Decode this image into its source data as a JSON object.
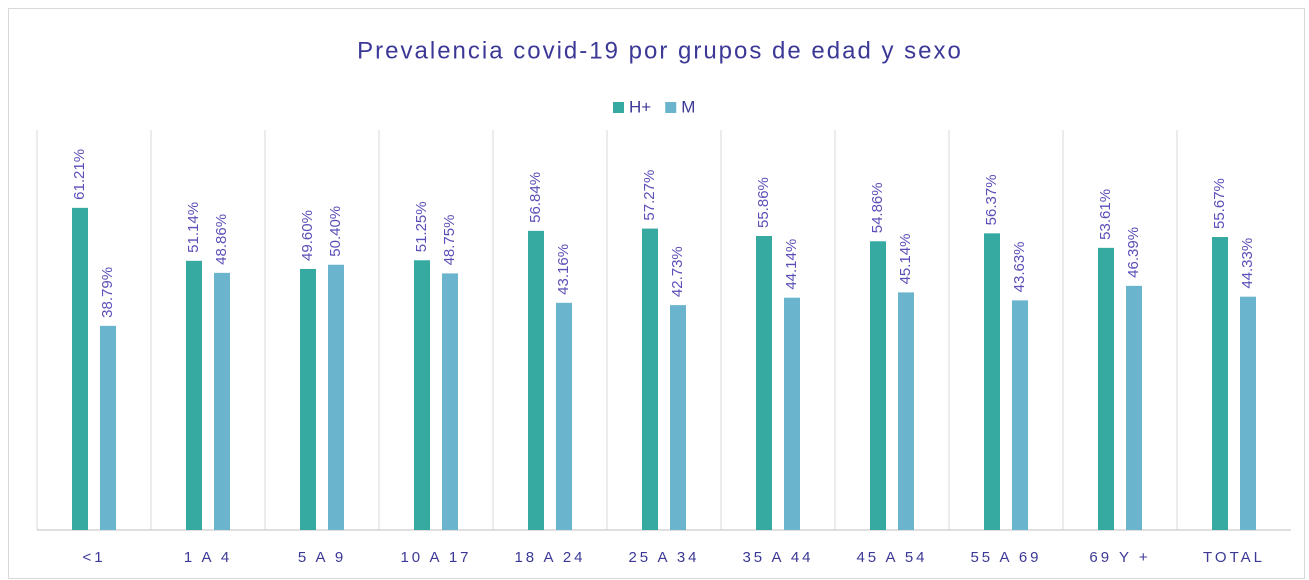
{
  "chart_data": {
    "type": "bar",
    "title": "Prevalencia covid-19  por grupos de edad y sexo",
    "categories": [
      "<1",
      "1 A 4",
      "5 A 9",
      "10 A 17",
      "18 A 24",
      "25 A 34",
      "35 A 44",
      "45 A 54",
      "55 A 69",
      "69 Y +",
      "TOTAL"
    ],
    "series": [
      {
        "name": "H+",
        "color": "#36aaa1",
        "values": [
          61.21,
          51.14,
          49.6,
          51.25,
          56.84,
          57.27,
          55.86,
          54.86,
          56.37,
          53.61,
          55.67
        ],
        "value_labels": [
          "61.21%",
          "51.14%",
          "49.60%",
          "51.25%",
          "56.84%",
          "57.27%",
          "55.86%",
          "54.86%",
          "56.37%",
          "53.61%",
          "55.67%"
        ]
      },
      {
        "name": "M",
        "color": "#6ab5cd",
        "values": [
          38.79,
          48.86,
          50.4,
          48.75,
          43.16,
          42.73,
          44.14,
          45.14,
          43.63,
          46.39,
          44.33
        ],
        "value_labels": [
          "38.79%",
          "48.86%",
          "50.40%",
          "48.75%",
          "43.16%",
          "42.73%",
          "44.14%",
          "45.14%",
          "43.63%",
          "46.39%",
          "44.33%"
        ]
      }
    ],
    "ylim": [
      0,
      76
    ],
    "legend": "top"
  }
}
